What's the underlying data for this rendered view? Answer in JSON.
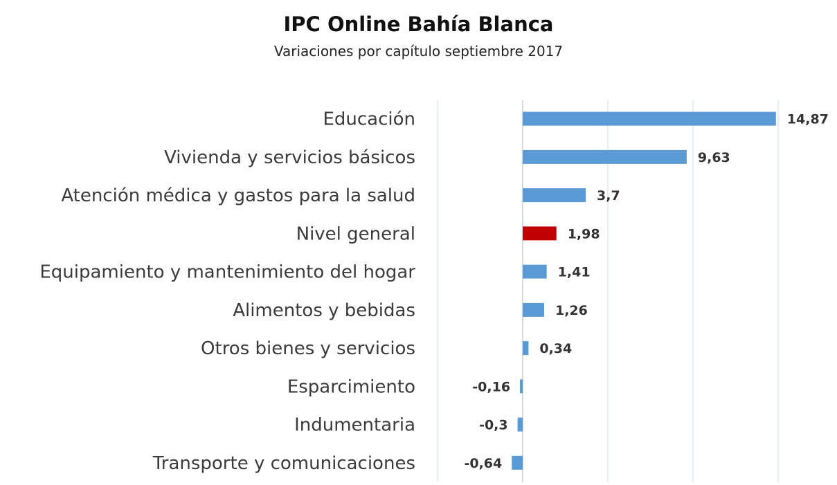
{
  "chart_data": {
    "type": "bar",
    "orientation": "horizontal",
    "title": "IPC Online Bahía Blanca",
    "subtitle": "Variaciones por capítulo septiembre 2017",
    "categories": [
      "Educación",
      "Vivienda y servicios básicos",
      "Atención médica y gastos para la salud",
      "Nivel general",
      "Equipamiento y mantenimiento del hogar",
      "Alimentos y bebidas",
      "Otros bienes y servicios",
      "Esparcimiento",
      "Indumentaria",
      "Transporte y comunicaciones"
    ],
    "values": [
      14.87,
      9.63,
      3.7,
      1.98,
      1.41,
      1.26,
      0.34,
      -0.16,
      -0.3,
      -0.64
    ],
    "value_labels": [
      "14,87",
      "9,63",
      "3,7",
      "1,98",
      "1,41",
      "1,26",
      "0,34",
      "-0,16",
      "-0,3",
      "-0,64"
    ],
    "highlight_category": "Nivel general",
    "xlim": [
      -5,
      15
    ],
    "grid": true,
    "legend": "none",
    "colors": {
      "bar": "#5B9BD5",
      "highlight": "#C00000",
      "grid": "#D9E4F0"
    }
  }
}
